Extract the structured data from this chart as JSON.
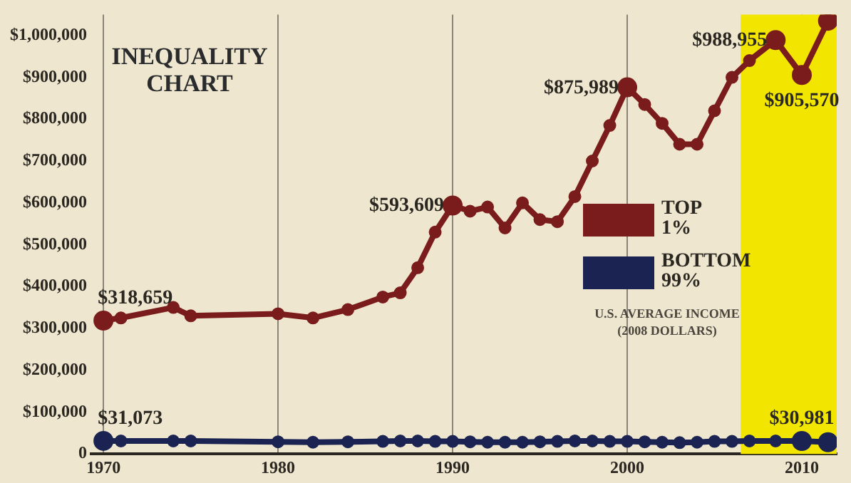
{
  "chart_data": {
    "type": "line",
    "title": "INEQUALITY CHART",
    "x": [
      1970,
      1971,
      1974,
      1975,
      1980,
      1982,
      1984,
      1986,
      1987,
      1988,
      1989,
      1990,
      1991,
      1992,
      1993,
      1994,
      1995,
      1996,
      1997,
      1998,
      1999,
      2000,
      2001,
      2002,
      2003,
      2004,
      2005,
      2006,
      2007,
      2008.5,
      2010,
      2011.5
    ],
    "series": [
      {
        "name": "TOP\n1%",
        "color": "#7a1c1c",
        "values": [
          318659,
          325000,
          350000,
          330000,
          335000,
          325000,
          345000,
          375000,
          385000,
          445000,
          530000,
          593609,
          580000,
          590000,
          540000,
          600000,
          560000,
          555000,
          615000,
          700000,
          785000,
          875989,
          835000,
          790000,
          740000,
          740000,
          820000,
          900000,
          940000,
          988955,
          905570,
          1035000
        ],
        "value_labels": [
          "$318,659",
          null,
          null,
          null,
          null,
          null,
          null,
          null,
          null,
          null,
          null,
          "$593,609",
          null,
          null,
          null,
          null,
          null,
          null,
          null,
          null,
          null,
          "$875,989",
          null,
          null,
          null,
          null,
          null,
          null,
          null,
          "$988,955",
          "$905,570",
          null
        ]
      },
      {
        "name": "BOTTOM\n99%",
        "color": "#1b2352",
        "values": [
          31073,
          31000,
          31000,
          31000,
          29000,
          28000,
          29000,
          30000,
          31000,
          31000,
          30000,
          30000,
          29000,
          28000,
          28000,
          28000,
          29000,
          30000,
          31000,
          31000,
          30000,
          30000,
          29000,
          28000,
          27000,
          28000,
          30000,
          30000,
          31000,
          31000,
          30981,
          28000
        ],
        "value_labels": [
          "$31,073",
          null,
          null,
          null,
          null,
          null,
          null,
          null,
          null,
          null,
          null,
          null,
          null,
          null,
          null,
          null,
          null,
          null,
          null,
          null,
          null,
          null,
          null,
          null,
          null,
          null,
          null,
          null,
          null,
          null,
          "$30,981",
          null
        ]
      }
    ],
    "xlim": [
      1969.3,
      2012
    ],
    "xticks": [
      1970,
      1980,
      1990,
      2000,
      2010
    ],
    "ylim": [
      0,
      1050000
    ],
    "yticks": [
      0,
      {
        "value": 100000,
        "label": "$100,000"
      },
      {
        "value": 200000,
        "label": "$200,000"
      },
      {
        "value": 300000,
        "label": "$300,000"
      },
      {
        "value": 400000,
        "label": "$400,000"
      },
      {
        "value": 500000,
        "label": "$500,000"
      },
      {
        "value": 600000,
        "label": "$600,000"
      },
      {
        "value": 700000,
        "label": "$700,000"
      },
      {
        "value": 800000,
        "label": "$800,000"
      },
      {
        "value": 900000,
        "label": "$900,000"
      },
      {
        "value": 1000000,
        "label": "$1,000,000"
      }
    ],
    "grid": "x",
    "legend": "right",
    "marker": "circle",
    "line_style": "solid",
    "bands": [
      {
        "axis": "x",
        "from": 2006.5,
        "to": 2012,
        "color": "#f2e600"
      }
    ],
    "annotations": [
      "U.S. AVERAGE INCOME\n(2008 DOLLARS)"
    ]
  }
}
